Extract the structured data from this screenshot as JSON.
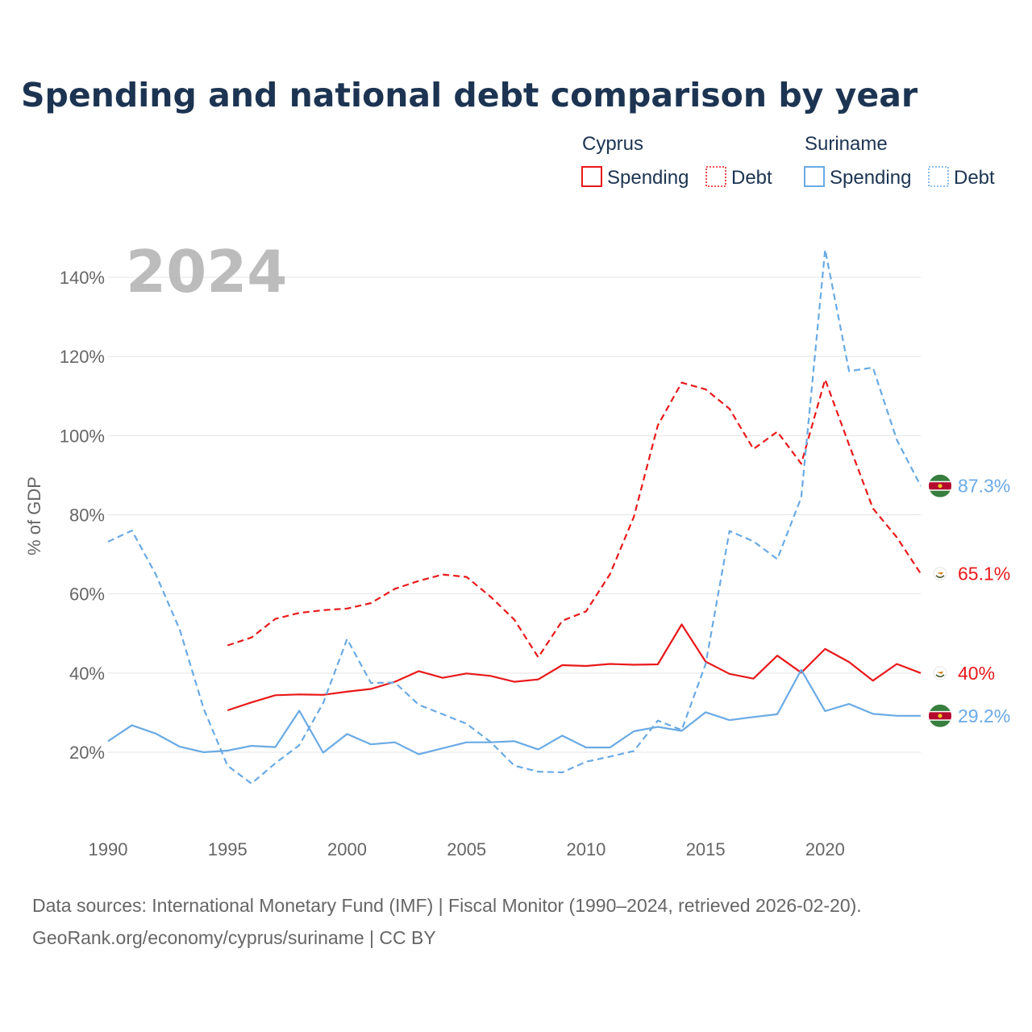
{
  "chart_data": {
    "type": "line",
    "title": "Spending and national debt comparison by year",
    "year_label": "2024",
    "ylabel": "% of GDP",
    "xlabel": "",
    "xlim": [
      1990,
      2024
    ],
    "ylim": [
      0,
      150
    ],
    "x_ticks": [
      1990,
      1995,
      2000,
      2005,
      2010,
      2015,
      2020
    ],
    "x_tick_labels": [
      "1990",
      "1995",
      "2000",
      "2005",
      "2010",
      "2015",
      "2020"
    ],
    "y_ticks": [
      20,
      40,
      60,
      80,
      100,
      120,
      140
    ],
    "y_tick_labels": [
      "20%",
      "40%",
      "60%",
      "80%",
      "100%",
      "120%",
      "140%"
    ],
    "grid": true,
    "legend": {
      "placement": "top-right",
      "groups": [
        {
          "country": "Cyprus",
          "items": [
            {
              "label": "Spending",
              "style": "solid"
            },
            {
              "label": "Debt",
              "style": "dotted"
            }
          ]
        },
        {
          "country": "Suriname",
          "items": [
            {
              "label": "Spending",
              "style": "solid"
            },
            {
              "label": "Debt",
              "style": "dotted"
            }
          ]
        }
      ]
    },
    "series": [
      {
        "name": "Cyprus Spending",
        "country": "Cyprus",
        "measure": "Spending",
        "color": "#e8191b",
        "dashed": false,
        "x": [
          1995,
          1996,
          1997,
          1998,
          1999,
          2000,
          2001,
          2002,
          2003,
          2004,
          2005,
          2006,
          2007,
          2008,
          2009,
          2010,
          2011,
          2012,
          2013,
          2014,
          2015,
          2016,
          2017,
          2018,
          2019,
          2020,
          2021,
          2022,
          2023,
          2024
        ],
        "values": [
          30.6,
          32.6,
          34.4,
          34.6,
          34.5,
          35.3,
          36.0,
          37.8,
          40.5,
          38.8,
          39.9,
          39.3,
          37.8,
          38.4,
          42.0,
          41.8,
          42.3,
          42.1,
          42.2,
          52.3,
          42.9,
          39.8,
          38.6,
          44.4,
          40.1,
          46.1,
          42.8,
          38.1,
          42.3,
          40.0
        ],
        "end_label": "40%"
      },
      {
        "name": "Cyprus Debt",
        "country": "Cyprus",
        "measure": "Debt",
        "color": "#e8191b",
        "dashed": true,
        "x": [
          1995,
          1996,
          1997,
          1998,
          1999,
          2000,
          2001,
          2002,
          2003,
          2004,
          2005,
          2006,
          2007,
          2008,
          2009,
          2010,
          2011,
          2012,
          2013,
          2014,
          2015,
          2016,
          2017,
          2018,
          2019,
          2020,
          2021,
          2022,
          2023,
          2024
        ],
        "values": [
          47.0,
          49.0,
          53.7,
          55.2,
          55.9,
          56.3,
          57.7,
          61.3,
          63.3,
          64.9,
          64.3,
          59.3,
          53.5,
          44.0,
          53.2,
          55.6,
          65.0,
          79.5,
          102.6,
          113.4,
          111.7,
          106.8,
          96.6,
          101.0,
          92.9,
          114.2,
          97.7,
          81.6,
          74.3,
          65.1
        ],
        "end_label": "65.1%"
      },
      {
        "name": "Suriname Spending",
        "country": "Suriname",
        "measure": "Spending",
        "color": "#6aaae4",
        "dashed": false,
        "x": [
          1990,
          1991,
          1992,
          1993,
          1994,
          1995,
          1996,
          1997,
          1998,
          1999,
          2000,
          2001,
          2002,
          2003,
          2004,
          2005,
          2006,
          2007,
          2008,
          2009,
          2010,
          2011,
          2012,
          2013,
          2014,
          2015,
          2016,
          2017,
          2018,
          2019,
          2020,
          2021,
          2022,
          2023,
          2024
        ],
        "values": [
          22.8,
          26.8,
          24.7,
          21.4,
          20.0,
          20.4,
          21.6,
          21.3,
          30.5,
          19.9,
          24.6,
          22.0,
          22.5,
          19.5,
          21.0,
          22.5,
          22.5,
          22.8,
          20.7,
          24.2,
          21.2,
          21.2,
          25.3,
          26.4,
          25.4,
          30.1,
          28.1,
          28.9,
          29.6,
          40.8,
          30.4,
          32.2,
          29.7,
          29.2,
          29.2
        ],
        "end_label": "29.2%"
      },
      {
        "name": "Suriname Debt",
        "country": "Suriname",
        "measure": "Debt",
        "color": "#6aaae4",
        "dashed": true,
        "x": [
          1990,
          1991,
          1992,
          1993,
          1994,
          1995,
          1996,
          1997,
          1998,
          1999,
          2000,
          2001,
          2002,
          2003,
          2004,
          2005,
          2006,
          2007,
          2008,
          2009,
          2010,
          2011,
          2012,
          2013,
          2014,
          2015,
          2016,
          2017,
          2018,
          2019,
          2020,
          2021,
          2022,
          2023,
          2024
        ],
        "values": [
          73.2,
          76.0,
          64.9,
          51.0,
          31.0,
          16.6,
          12.1,
          17.2,
          21.8,
          32.4,
          48.6,
          37.5,
          37.6,
          32.0,
          29.6,
          27.2,
          22.6,
          16.6,
          15.1,
          14.9,
          17.6,
          18.9,
          20.3,
          28.0,
          25.6,
          42.3,
          75.9,
          73.3,
          68.8,
          84.4,
          147.0,
          116.3,
          117.2,
          98.9,
          87.3
        ],
        "end_label": "87.3%"
      }
    ]
  },
  "sources": {
    "line1": "Data sources: International Monetary Fund (IMF) | Fiscal Monitor (1990–2024, retrieved 2026-02-20).",
    "line2": "GeoRank.org/economy/cyprus/suriname | CC BY"
  }
}
